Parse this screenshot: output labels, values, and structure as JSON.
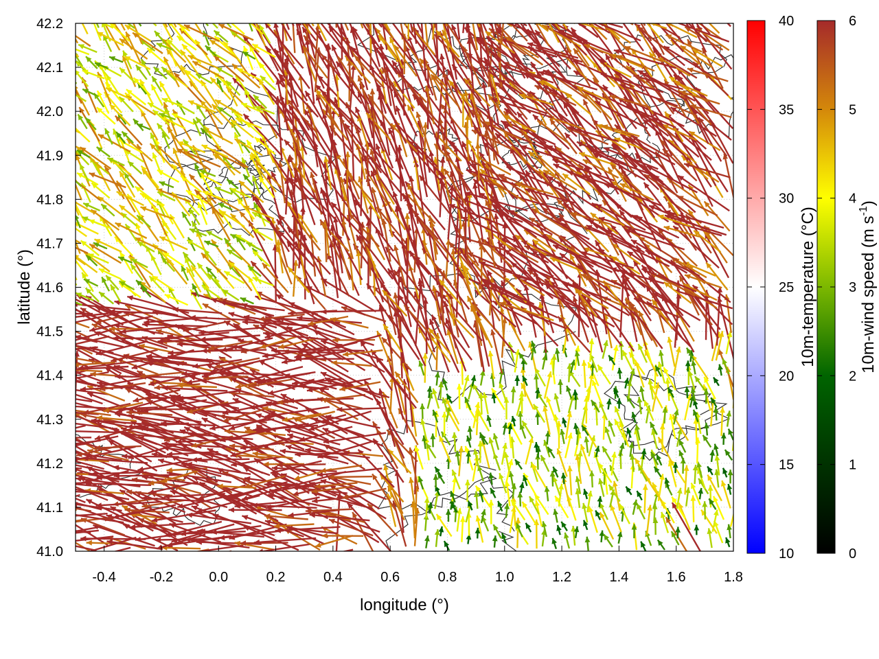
{
  "chart_data": {
    "type": "vector-field",
    "xlabel": "longitude (°)",
    "ylabel": "latitude (°)",
    "xlim": [
      -0.5,
      1.8
    ],
    "ylim": [
      41.0,
      42.2
    ],
    "x_ticks": [
      {
        "value": -0.4,
        "label": "-0.4"
      },
      {
        "value": -0.2,
        "label": "-0.2"
      },
      {
        "value": 0.0,
        "label": "0.0"
      },
      {
        "value": 0.2,
        "label": "0.2"
      },
      {
        "value": 0.4,
        "label": "0.4"
      },
      {
        "value": 0.6,
        "label": "0.6"
      },
      {
        "value": 0.8,
        "label": "0.8"
      },
      {
        "value": 1.0,
        "label": "1.0"
      },
      {
        "value": 1.2,
        "label": "1.2"
      },
      {
        "value": 1.4,
        "label": "1.4"
      },
      {
        "value": 1.6,
        "label": "1.6"
      },
      {
        "value": 1.8,
        "label": "1.8"
      }
    ],
    "y_ticks": [
      {
        "value": 41.0,
        "label": "41.0"
      },
      {
        "value": 41.1,
        "label": "41.1"
      },
      {
        "value": 41.2,
        "label": "41.2"
      },
      {
        "value": 41.3,
        "label": "41.3"
      },
      {
        "value": 41.4,
        "label": "41.4"
      },
      {
        "value": 41.5,
        "label": "41.5"
      },
      {
        "value": 41.6,
        "label": "41.6"
      },
      {
        "value": 41.7,
        "label": "41.7"
      },
      {
        "value": 41.8,
        "label": "41.8"
      },
      {
        "value": 41.9,
        "label": "41.9"
      },
      {
        "value": 42.0,
        "label": "42.0"
      },
      {
        "value": 42.1,
        "label": "42.1"
      },
      {
        "value": 42.2,
        "label": "42.2"
      }
    ],
    "colorbars": [
      {
        "name": "temperature",
        "label": "10m-temperature (°C)",
        "range": [
          10,
          40
        ],
        "ticks": [
          {
            "value": 10,
            "label": "10"
          },
          {
            "value": 15,
            "label": "15"
          },
          {
            "value": 20,
            "label": "20"
          },
          {
            "value": 25,
            "label": "25"
          },
          {
            "value": 30,
            "label": "30"
          },
          {
            "value": 35,
            "label": "35"
          },
          {
            "value": 40,
            "label": "40"
          }
        ],
        "stops": [
          {
            "value": 10,
            "color": "#0000ff"
          },
          {
            "value": 25,
            "color": "#ffffff"
          },
          {
            "value": 40,
            "color": "#ff0000"
          }
        ]
      },
      {
        "name": "wind-speed",
        "label_main": "10m-wind speed (m s",
        "label_sup": "-1",
        "label_end": ")",
        "range": [
          0,
          6
        ],
        "ticks": [
          {
            "value": 0,
            "label": "0"
          },
          {
            "value": 1,
            "label": "1"
          },
          {
            "value": 2,
            "label": "2"
          },
          {
            "value": 3,
            "label": "3"
          },
          {
            "value": 4,
            "label": "4"
          },
          {
            "value": 5,
            "label": "5"
          },
          {
            "value": 6,
            "label": "6"
          }
        ],
        "stops": [
          {
            "value": 0,
            "color": "#000000"
          },
          {
            "value": 2,
            "color": "#006400"
          },
          {
            "value": 3,
            "color": "#7cb800"
          },
          {
            "value": 4,
            "color": "#ffff00"
          },
          {
            "value": 5,
            "color": "#d4880a"
          },
          {
            "value": 6,
            "color": "#a52a2a"
          }
        ]
      }
    ],
    "wind_field": {
      "description_units": "arrow direction (degrees, 0=east, counter-clockwise) and speed (m s-1)",
      "sample_regions": [
        {
          "lon_range": [
            -0.5,
            0.6
          ],
          "lat_range": [
            41.0,
            41.55
          ],
          "direction_deg": 172,
          "speed": 6.5
        },
        {
          "lon_range": [
            -0.5,
            0.2
          ],
          "lat_range": [
            41.55,
            42.2
          ],
          "direction_deg": 135,
          "speed": 4.0
        },
        {
          "lon_range": [
            0.2,
            1.0
          ],
          "lat_range": [
            41.4,
            42.2
          ],
          "direction_deg": 110,
          "speed": 6.0
        },
        {
          "lon_range": [
            1.0,
            1.8
          ],
          "lat_range": [
            41.5,
            42.2
          ],
          "direction_deg": 140,
          "speed": 6.0
        },
        {
          "lon_range": [
            0.7,
            1.8
          ],
          "lat_range": [
            41.0,
            41.45
          ],
          "direction_deg": 100,
          "speed": 3.2
        }
      ]
    }
  }
}
